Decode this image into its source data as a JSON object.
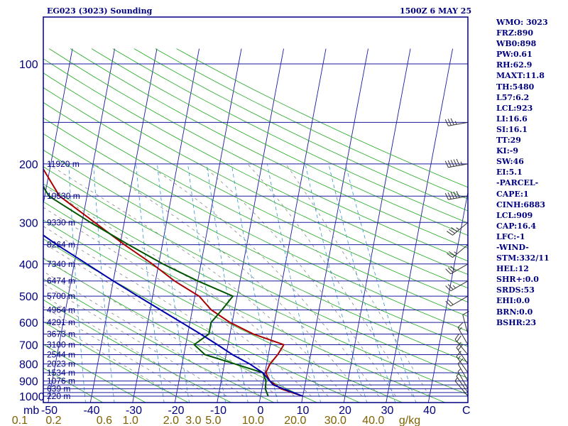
{
  "header": {
    "title": "EG023 (3023) Sounding",
    "datetime": "1500Z  6 MAY 25"
  },
  "indices": [
    "WMO: 3023",
    "FRZ:890",
    "WB0:898",
    "PW:0.61",
    "RH:62.9",
    "MAXT:11.8",
    "TH:5480",
    "L57:6.2",
    "LCL:923",
    "LI:16.6",
    "SI:16.1",
    "TT:29",
    "KI:-9",
    "SW:46",
    "EI:5.1",
    "-PARCEL-",
    "CAPE:1",
    "CINH:6883",
    "LCL:909",
    "CAP:16.4",
    "LFC:-1",
    "-WIND-",
    "STM:332/11",
    "HEL:12",
    "SHR+:0.0",
    "SRDS:53",
    "EHI:0.0",
    "BRN:0.0",
    "BSHR:23"
  ],
  "colors": {
    "frame": "#000080",
    "isobar": "#1a1aa0",
    "isotherm": "#1a1aa0",
    "dry_adiabat": "#22aa22",
    "moist_adiabat": "#888888",
    "mixing_ratio": "#3399cc",
    "temperature": "#aa0000",
    "dewpoint": "#005500",
    "parcel": "#0000aa",
    "bottom_scale": "#806000"
  },
  "chart_data": {
    "type": "line",
    "chart_kind": "skew-T log-P",
    "xlabel": "C",
    "ylabel": "mb",
    "pressure_range": [
      1000,
      100
    ],
    "y_scale": "log",
    "temp_ticks": [
      -50,
      -40,
      -30,
      -20,
      -10,
      0,
      10,
      20,
      30,
      40
    ],
    "pressure_tick_labels": [
      100,
      200,
      300,
      400,
      500,
      600,
      700,
      800,
      900,
      1000
    ],
    "isobars_mb": [
      100,
      150,
      200,
      250,
      300,
      350,
      400,
      450,
      500,
      550,
      600,
      650,
      700,
      750,
      800,
      850,
      900,
      925,
      950,
      975,
      1000
    ],
    "mixing_ratio_labels": [
      {
        "text": "0.1",
        "t": -57
      },
      {
        "text": "0.2",
        "t": -49
      },
      {
        "text": "0.6",
        "t": -37
      },
      {
        "text": "1.0",
        "t": -30.8
      },
      {
        "text": "2.0",
        "t": -21.2
      },
      {
        "text": "3.0",
        "t": -15.9
      },
      {
        "text": "5.0",
        "t": -11.2
      },
      {
        "text": "10.0",
        "t": -1.8
      },
      {
        "text": "20.0",
        "t": 8.2
      },
      {
        "text": "30.0",
        "t": 17.7
      },
      {
        "text": "40.0",
        "t": 26.7
      },
      {
        "text": "g/kg",
        "t": 35.3
      }
    ],
    "height_labels": [
      {
        "p": 1000,
        "text": "220 m"
      },
      {
        "p": 950,
        "text": "639 m"
      },
      {
        "p": 900,
        "text": "1076 m"
      },
      {
        "p": 850,
        "text": "1534 m"
      },
      {
        "p": 800,
        "text": "2023 m"
      },
      {
        "p": 750,
        "text": "2544 m"
      },
      {
        "p": 700,
        "text": "3100 m"
      },
      {
        "p": 650,
        "text": "3673 m"
      },
      {
        "p": 600,
        "text": "4291 m"
      },
      {
        "p": 550,
        "text": "4964 m"
      },
      {
        "p": 500,
        "text": "5700 m"
      },
      {
        "p": 450,
        "text": "6474 m"
      },
      {
        "p": 400,
        "text": "7340 m"
      },
      {
        "p": 350,
        "text": "8264 m"
      },
      {
        "p": 300,
        "text": "9330 m"
      },
      {
        "p": 250,
        "text": "10530 m"
      },
      {
        "p": 200,
        "text": "11920 m"
      }
    ],
    "series": [
      {
        "name": "temperature",
        "points": [
          [
            1000,
            10
          ],
          [
            950,
            4.5
          ],
          [
            900,
            1.5
          ],
          [
            850,
            0.2
          ],
          [
            800,
            0.8
          ],
          [
            750,
            2.2
          ],
          [
            700,
            3.2
          ],
          [
            650,
            -4.5
          ],
          [
            600,
            -10.5
          ],
          [
            550,
            -15.5
          ],
          [
            500,
            -19
          ],
          [
            450,
            -25.5
          ],
          [
            400,
            -31.5
          ],
          [
            350,
            -39
          ],
          [
            300,
            -47
          ],
          [
            250,
            -56.5
          ],
          [
            200,
            -62.5
          ]
        ]
      },
      {
        "name": "dewpoint",
        "points": [
          [
            1000,
            1.8
          ],
          [
            950,
            0.8
          ],
          [
            900,
            0.6
          ],
          [
            850,
            -0.5
          ],
          [
            800,
            -7.5
          ],
          [
            750,
            -15
          ],
          [
            700,
            -18
          ],
          [
            650,
            -15
          ],
          [
            600,
            -15
          ],
          [
            550,
            -13
          ],
          [
            500,
            -11
          ],
          [
            450,
            -20
          ],
          [
            400,
            -29
          ],
          [
            350,
            -38
          ],
          [
            300,
            -48
          ],
          [
            250,
            -59
          ],
          [
            200,
            -65
          ]
        ]
      },
      {
        "name": "parcel",
        "points": [
          [
            1000,
            10
          ],
          [
            925,
            2.5
          ],
          [
            850,
            -0.5
          ],
          [
            800,
            -4
          ],
          [
            750,
            -8.5
          ],
          [
            700,
            -12.5
          ],
          [
            650,
            -17
          ],
          [
            600,
            -22
          ],
          [
            550,
            -27.5
          ],
          [
            500,
            -33.5
          ],
          [
            450,
            -40
          ],
          [
            400,
            -47
          ],
          [
            350,
            -55
          ],
          [
            300,
            -63.5
          ],
          [
            250,
            -73
          ],
          [
            200,
            -83
          ],
          [
            150,
            -95
          ],
          [
            100,
            -110
          ]
        ]
      }
    ],
    "wind_profile": [
      {
        "p": 1000,
        "dir": 320,
        "spd": 5
      },
      {
        "p": 975,
        "dir": 325,
        "spd": 5
      },
      {
        "p": 950,
        "dir": 330,
        "spd": 5
      },
      {
        "p": 900,
        "dir": 330,
        "spd": 10
      },
      {
        "p": 850,
        "dir": 325,
        "spd": 15
      },
      {
        "p": 800,
        "dir": 325,
        "spd": 20
      },
      {
        "p": 750,
        "dir": 320,
        "spd": 20
      },
      {
        "p": 700,
        "dir": 330,
        "spd": 15
      },
      {
        "p": 650,
        "dir": 345,
        "spd": 10
      },
      {
        "p": 500,
        "dir": 240,
        "spd": 20
      },
      {
        "p": 450,
        "dir": 240,
        "spd": 25
      },
      {
        "p": 400,
        "dir": 240,
        "spd": 30
      },
      {
        "p": 350,
        "dir": 230,
        "spd": 25
      },
      {
        "p": 300,
        "dir": 230,
        "spd": 35
      },
      {
        "p": 250,
        "dir": 260,
        "spd": 50
      },
      {
        "p": 200,
        "dir": 260,
        "spd": 55
      },
      {
        "p": 150,
        "dir": 260,
        "spd": 35
      }
    ]
  }
}
